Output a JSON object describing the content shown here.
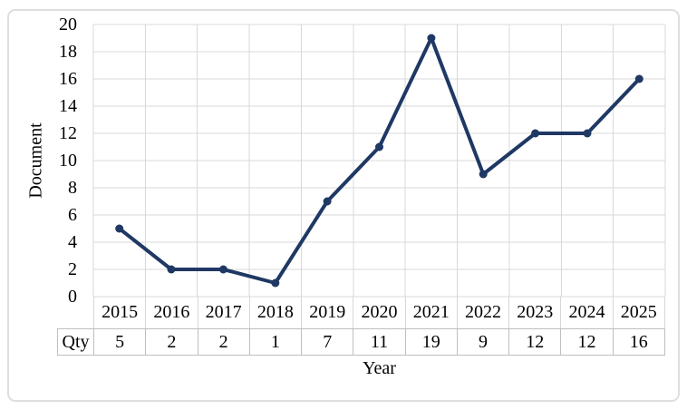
{
  "chart_data": {
    "type": "line",
    "title": "",
    "xlabel": "Year",
    "ylabel": "Document",
    "categories": [
      "2015",
      "2016",
      "2017",
      "2018",
      "2019",
      "2020",
      "2021",
      "2022",
      "2023",
      "2024",
      "2025"
    ],
    "series": [
      {
        "name": "Qty",
        "values": [
          5,
          2,
          2,
          1,
          7,
          11,
          19,
          9,
          12,
          12,
          16
        ]
      }
    ],
    "ylim": [
      0,
      20
    ],
    "y_tick_step": 2,
    "y_tick_labels": [
      "20",
      "18",
      "16",
      "14",
      "12",
      "10",
      "8",
      "6",
      "4",
      "2",
      "0"
    ],
    "grid": true,
    "legend": "none",
    "data_table_shown": true,
    "marker": "circle",
    "colors": {
      "line": "#1f3864",
      "marker": "#1f3864",
      "gridline": "#d9d9d9",
      "table_border": "#bfbfbf",
      "text": "#000000",
      "figure_border": "#dedede",
      "background": "#ffffff"
    }
  }
}
